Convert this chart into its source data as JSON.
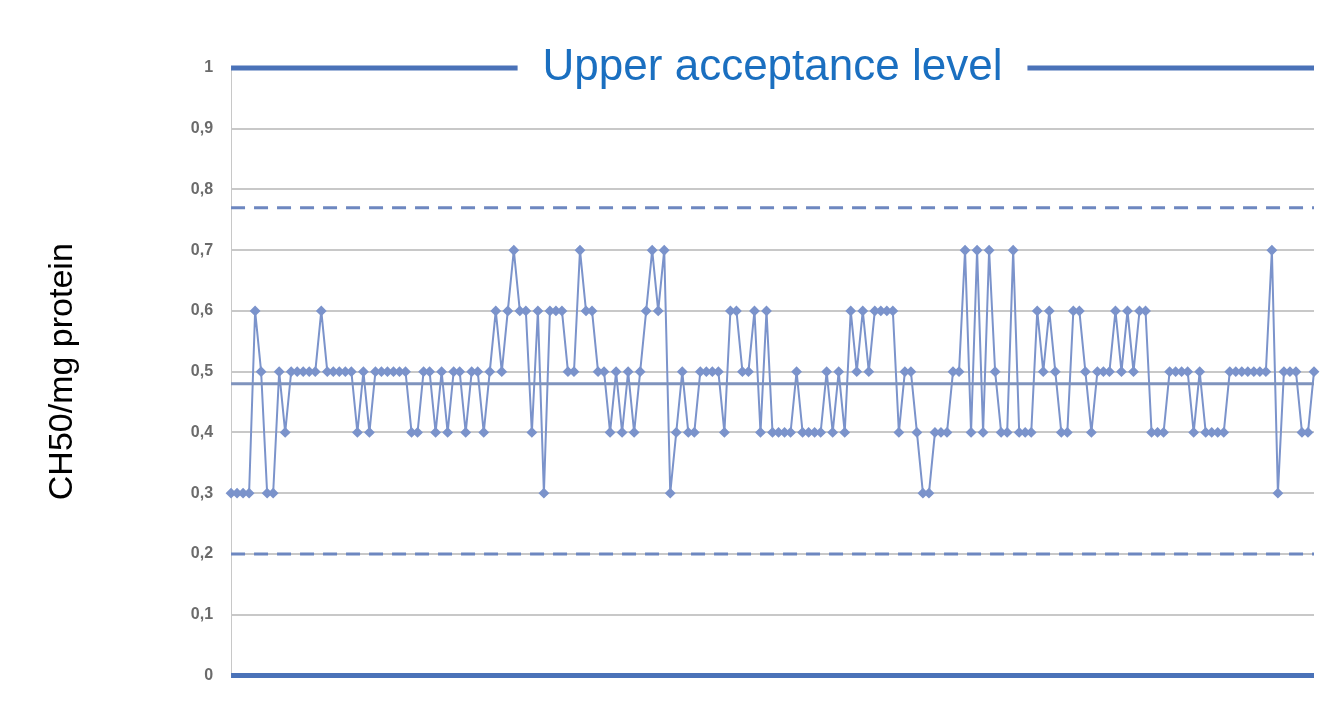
{
  "chart_data": {
    "type": "line",
    "ylabel": "CH50/mg protein",
    "categories": [
      null,
      null,
      null,
      null,
      null,
      null,
      null,
      null,
      null,
      null,
      null,
      null,
      null,
      null,
      null,
      null,
      null,
      null,
      null,
      null,
      null,
      null,
      null,
      null,
      null,
      null,
      null,
      null,
      null,
      null,
      null,
      null,
      null,
      null,
      null,
      null,
      null,
      null,
      null,
      null,
      null,
      null,
      null,
      null,
      null,
      null,
      null,
      null,
      null,
      null,
      null,
      null,
      null,
      null,
      null,
      null,
      null,
      null,
      null,
      null,
      null,
      null,
      null,
      null,
      null,
      null,
      null,
      null,
      null,
      null,
      null,
      null,
      null,
      null,
      null,
      null,
      null,
      null,
      null,
      null,
      null,
      null,
      null,
      null,
      null,
      null,
      null,
      null,
      null,
      null,
      null,
      null,
      null,
      null,
      null,
      null,
      null,
      null,
      null,
      null,
      null,
      null,
      null,
      null,
      null,
      null,
      null,
      null,
      null,
      null,
      null,
      null,
      null,
      null,
      null,
      null,
      null,
      null,
      null,
      null,
      null,
      null,
      null,
      null,
      null,
      null,
      null,
      null,
      null,
      null,
      null,
      null,
      null,
      null,
      null,
      null,
      null,
      null,
      null,
      null,
      null,
      null,
      null,
      null,
      null,
      null,
      null,
      null,
      null,
      null,
      null,
      null,
      null,
      null,
      null,
      null,
      null,
      null,
      null,
      null,
      null,
      null,
      null,
      null,
      null,
      null,
      null,
      null,
      null,
      null,
      null,
      null,
      null,
      null,
      null,
      null,
      null,
      null,
      null,
      null,
      null
    ],
    "series": [
      {
        "color": "#7b93cb",
        "values": [
          0.3,
          0.3,
          0.3,
          0.3,
          0.6,
          0.5,
          0.3,
          0.3,
          0.5,
          0.4,
          0.5,
          0.5,
          0.5,
          0.5,
          0.5,
          0.6,
          0.5,
          0.5,
          0.5,
          0.5,
          0.5,
          0.4,
          0.5,
          0.4,
          0.5,
          0.5,
          0.5,
          0.5,
          0.5,
          0.5,
          0.4,
          0.4,
          0.5,
          0.5,
          0.4,
          0.5,
          0.4,
          0.5,
          0.5,
          0.4,
          0.5,
          0.5,
          0.4,
          0.5,
          0.6,
          0.5,
          0.6,
          0.7,
          0.6,
          0.6,
          0.4,
          0.6,
          0.3,
          0.6,
          0.6,
          0.6,
          0.5,
          0.5,
          0.7,
          0.6,
          0.6,
          0.5,
          0.5,
          0.4,
          0.5,
          0.4,
          0.5,
          0.4,
          0.5,
          0.6,
          0.7,
          0.6,
          0.7,
          0.3,
          0.4,
          0.5,
          0.4,
          0.4,
          0.5,
          0.5,
          0.5,
          0.5,
          0.4,
          0.6,
          0.6,
          0.5,
          0.5,
          0.6,
          0.4,
          0.6,
          0.4,
          0.4,
          0.4,
          0.4,
          0.5,
          0.4,
          0.4,
          0.4,
          0.4,
          0.5,
          0.4,
          0.5,
          0.4,
          0.6,
          0.5,
          0.6,
          0.5,
          0.6,
          0.6,
          0.6,
          0.6,
          0.4,
          0.5,
          0.5,
          0.4,
          0.3,
          0.3,
          0.4,
          0.4,
          0.4,
          0.5,
          0.5,
          0.7,
          0.4,
          0.7,
          0.4,
          0.7,
          0.5,
          0.4,
          0.4,
          0.7,
          0.4,
          0.4,
          0.4,
          0.6,
          0.5,
          0.6,
          0.5,
          0.4,
          0.4,
          0.6,
          0.6,
          0.5,
          0.4,
          0.5,
          0.5,
          0.5,
          0.6,
          0.5,
          0.6,
          0.5,
          0.6,
          0.6,
          0.4,
          0.4,
          0.4,
          0.5,
          0.5,
          0.5,
          0.5,
          0.4,
          0.5,
          0.4,
          0.4,
          0.4,
          0.4,
          0.5,
          0.5,
          0.5,
          0.5,
          0.5,
          0.5,
          0.5,
          0.7,
          0.3,
          0.5,
          0.5,
          0.5,
          0.4,
          0.4,
          0.5
        ]
      }
    ],
    "ylim": [
      0,
      1
    ],
    "yticks": [
      {
        "value": 0,
        "label": "0"
      },
      {
        "value": 0.1,
        "label": "0,1"
      },
      {
        "value": 0.2,
        "label": "0,2"
      },
      {
        "value": 0.3,
        "label": "0,3"
      },
      {
        "value": 0.4,
        "label": "0,4"
      },
      {
        "value": 0.5,
        "label": "0,5"
      },
      {
        "value": 0.6,
        "label": "0,6"
      },
      {
        "value": 0.7,
        "label": "0,7"
      },
      {
        "value": 0.8,
        "label": "0,8"
      },
      {
        "value": 0.9,
        "label": "0,9"
      },
      {
        "value": 1,
        "label": "1"
      }
    ],
    "ref_lines": [
      {
        "axis": "y",
        "value": 1,
        "label": "Upper acceptance level",
        "color": "#4a72b8",
        "line_style": "solid"
      },
      {
        "axis": "y",
        "value": 0.77,
        "color": "#6d87c0",
        "line_style": "dashed"
      },
      {
        "axis": "y",
        "value": 0.48,
        "color": "#7f93bd",
        "line_style": "solid"
      },
      {
        "axis": "y",
        "value": 0.2,
        "color": "#6d87c0",
        "line_style": "dashed"
      },
      {
        "axis": "y",
        "value": 0,
        "color": "#4a72b8",
        "line_style": "solid"
      }
    ],
    "grid": "y",
    "tick_labels": "y",
    "marker": "diamond",
    "line_style": "solid",
    "legend": false
  }
}
